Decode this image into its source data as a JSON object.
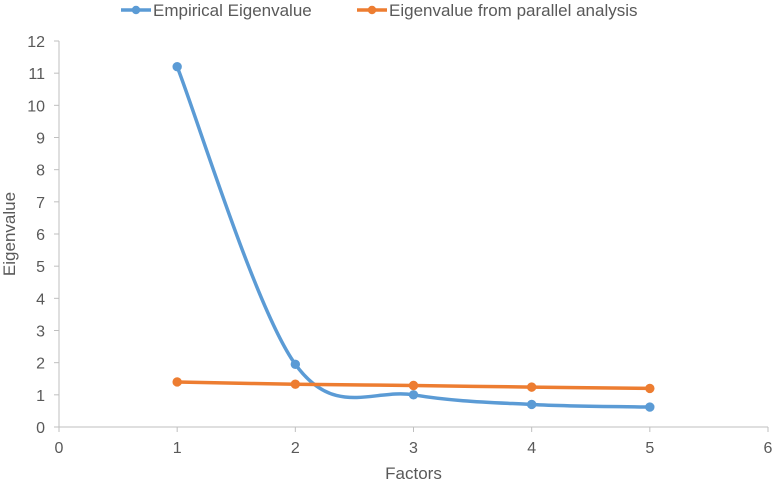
{
  "chart_data": {
    "type": "line",
    "xlabel": "Factors",
    "ylabel": "Eigenvalue",
    "xlim": [
      0,
      6
    ],
    "ylim": [
      0,
      12
    ],
    "xticks": [
      0,
      1,
      2,
      3,
      4,
      5,
      6
    ],
    "yticks": [
      0,
      1,
      2,
      3,
      4,
      5,
      6,
      7,
      8,
      9,
      10,
      11,
      12
    ],
    "smooth": true,
    "grid": false,
    "legend_position": "top",
    "series": [
      {
        "name": "Empirical Eigenvalue",
        "color": "#5B9BD5",
        "x": [
          1,
          2,
          3,
          4,
          5
        ],
        "values": [
          11.2,
          1.95,
          1.0,
          0.7,
          0.62
        ]
      },
      {
        "name": "Eigenvalue from parallel analysis",
        "color": "#ED7D31",
        "x": [
          1,
          2,
          3,
          4,
          5
        ],
        "values": [
          1.4,
          1.33,
          1.29,
          1.24,
          1.2
        ]
      }
    ]
  }
}
